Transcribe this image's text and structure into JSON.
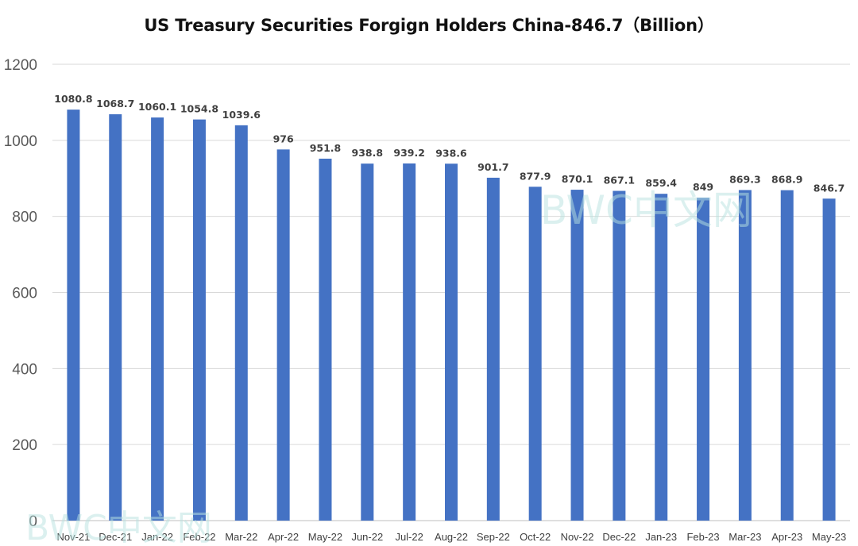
{
  "chart_data": {
    "type": "bar",
    "title": "US Treasury Securities Forgign Holders China-846.7（Billion）",
    "xlabel": "",
    "ylabel": "",
    "ylim": [
      0,
      1200
    ],
    "yticks": [
      0,
      200,
      400,
      600,
      800,
      1000,
      1200
    ],
    "grid": true,
    "bar_color": "#4472C4",
    "categories": [
      "Nov-21",
      "Dec-21",
      "Jan-22",
      "Feb-22",
      "Mar-22",
      "Apr-22",
      "May-22",
      "Jun-22",
      "Jul-22",
      "Aug-22",
      "Sep-22",
      "Oct-22",
      "Nov-22",
      "Dec-22",
      "Jan-23",
      "Feb-23",
      "Mar-23",
      "Apr-23",
      "May-23"
    ],
    "values": [
      1080.8,
      1068.7,
      1060.1,
      1054.8,
      1039.6,
      976,
      951.8,
      938.8,
      939.2,
      938.6,
      901.7,
      877.9,
      870.1,
      867.1,
      859.4,
      849,
      869.3,
      868.9,
      846.7
    ],
    "data_labels": [
      "1080.8",
      "1068.7",
      "1060.1",
      "1054.8",
      "1039.6",
      "976",
      "951.8",
      "938.8",
      "939.2",
      "938.6",
      "901.7",
      "877.9",
      "870.1",
      "867.1",
      "859.4",
      "849",
      "869.3",
      "868.9",
      "846.7"
    ],
    "watermark": "BWC中文网"
  }
}
